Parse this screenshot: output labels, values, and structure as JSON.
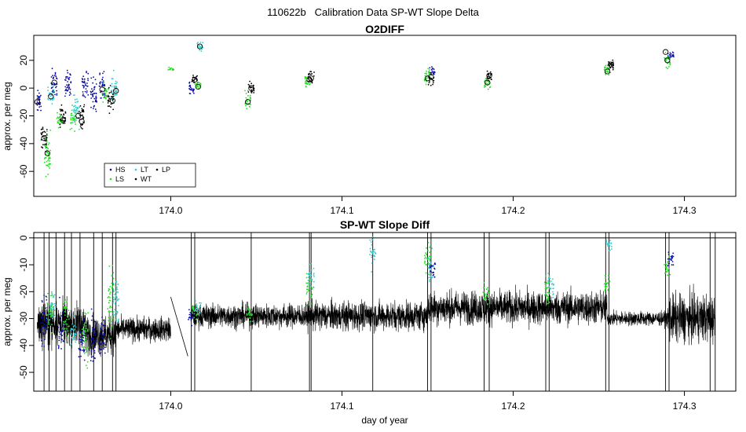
{
  "page_title": "110622b   Calibration Data SP-WT Slope Delta",
  "colors": {
    "HS": "#0a0aa8",
    "LS": "#22dd22",
    "LT": "#33cccc",
    "WT": "#000000",
    "LP": "#000000"
  },
  "chart_data": [
    {
      "type": "scatter",
      "title": "O2DIFF",
      "xlabel": "",
      "ylabel": "approx. per meg",
      "xlim": [
        173.92,
        174.33
      ],
      "ylim": [
        -78,
        38
      ],
      "x_ticks": [
        174.0,
        174.1,
        174.2,
        174.3
      ],
      "x_tick_labels": [
        "174.0",
        "174.1",
        "174.2",
        "174.3"
      ],
      "y_ticks": [
        -60,
        -40,
        -20,
        0,
        20
      ],
      "y_tick_labels": [
        "-60",
        "-40",
        "-20",
        "0",
        "20"
      ],
      "legend": {
        "placement": "bottom-left",
        "entries": [
          {
            "key": "HS",
            "label": "HS"
          },
          {
            "key": "LS",
            "label": "LS"
          },
          {
            "key": "LT",
            "label": "LT"
          },
          {
            "key": "WT",
            "label": "WT"
          },
          {
            "key": "LP",
            "label": "LP"
          }
        ]
      },
      "clusters": [
        {
          "x": 173.923,
          "y": -10,
          "spread": 5,
          "series": "HS"
        },
        {
          "x": 173.926,
          "y": -36,
          "spread": 6,
          "series": "WT"
        },
        {
          "x": 173.928,
          "y": -47,
          "spread": 10,
          "series": "LS"
        },
        {
          "x": 173.93,
          "y": -5,
          "spread": 5,
          "series": "LT"
        },
        {
          "x": 173.932,
          "y": 5,
          "spread": 6,
          "series": "HS"
        },
        {
          "x": 173.935,
          "y": -23,
          "spread": 5,
          "series": "LS"
        },
        {
          "x": 173.937,
          "y": -20,
          "spread": 5,
          "series": "WT"
        },
        {
          "x": 173.94,
          "y": 3,
          "spread": 8,
          "series": "HS"
        },
        {
          "x": 173.943,
          "y": -22,
          "spread": 5,
          "series": "LS"
        },
        {
          "x": 173.945,
          "y": -15,
          "spread": 8,
          "series": "LT"
        },
        {
          "x": 173.948,
          "y": -20,
          "spread": 6,
          "series": "WT"
        },
        {
          "x": 173.95,
          "y": 2,
          "spread": 7,
          "series": "HS"
        },
        {
          "x": 173.955,
          "y": -5,
          "spread": 8,
          "series": "HS"
        },
        {
          "x": 173.96,
          "y": 0,
          "spread": 7,
          "series": "HS"
        },
        {
          "x": 173.962,
          "y": -5,
          "spread": 5,
          "series": "LS"
        },
        {
          "x": 173.965,
          "y": -9,
          "spread": 6,
          "series": "WT"
        },
        {
          "x": 173.967,
          "y": 0,
          "spread": 7,
          "series": "LT"
        },
        {
          "x": 174.0,
          "y": 14,
          "spread": 1,
          "series": "LS"
        },
        {
          "x": 174.012,
          "y": 0,
          "spread": 3,
          "series": "HS"
        },
        {
          "x": 174.014,
          "y": 6,
          "spread": 2,
          "series": "WT"
        },
        {
          "x": 174.016,
          "y": 2,
          "spread": 2,
          "series": "LS"
        },
        {
          "x": 174.017,
          "y": 30,
          "spread": 2,
          "series": "LT"
        },
        {
          "x": 174.045,
          "y": -9,
          "spread": 4,
          "series": "LS"
        },
        {
          "x": 174.047,
          "y": 0,
          "spread": 3,
          "series": "WT"
        },
        {
          "x": 174.08,
          "y": 5,
          "spread": 3,
          "series": "LS"
        },
        {
          "x": 174.082,
          "y": 8,
          "spread": 3,
          "series": "WT"
        },
        {
          "x": 174.15,
          "y": 8,
          "spread": 4,
          "series": "LS"
        },
        {
          "x": 174.152,
          "y": 7,
          "spread": 3,
          "series": "WT"
        },
        {
          "x": 174.153,
          "y": 12,
          "spread": 2,
          "series": "HS"
        },
        {
          "x": 174.185,
          "y": 5,
          "spread": 4,
          "series": "LS"
        },
        {
          "x": 174.186,
          "y": 9,
          "spread": 3,
          "series": "WT"
        },
        {
          "x": 174.255,
          "y": 13,
          "spread": 4,
          "series": "LS"
        },
        {
          "x": 174.257,
          "y": 17,
          "spread": 3,
          "series": "WT"
        },
        {
          "x": 174.29,
          "y": 20,
          "spread": 4,
          "series": "LS"
        },
        {
          "x": 174.292,
          "y": 24,
          "spread": 2,
          "series": "HS"
        }
      ],
      "circle_markers": [
        {
          "x": 173.922,
          "y": -10
        },
        {
          "x": 173.926,
          "y": -36
        },
        {
          "x": 173.928,
          "y": -47
        },
        {
          "x": 173.93,
          "y": -6
        },
        {
          "x": 173.932,
          "y": 4
        },
        {
          "x": 173.937,
          "y": -23
        },
        {
          "x": 173.946,
          "y": -20
        },
        {
          "x": 173.948,
          "y": -24
        },
        {
          "x": 173.96,
          "y": -1
        },
        {
          "x": 173.966,
          "y": -9
        },
        {
          "x": 173.968,
          "y": -2
        },
        {
          "x": 174.014,
          "y": 6
        },
        {
          "x": 174.016,
          "y": 1
        },
        {
          "x": 174.017,
          "y": 30
        },
        {
          "x": 174.045,
          "y": -10
        },
        {
          "x": 174.047,
          "y": 0
        },
        {
          "x": 174.081,
          "y": 6
        },
        {
          "x": 174.082,
          "y": 7
        },
        {
          "x": 174.15,
          "y": 7
        },
        {
          "x": 174.152,
          "y": 8
        },
        {
          "x": 174.185,
          "y": 4
        },
        {
          "x": 174.186,
          "y": 9
        },
        {
          "x": 174.255,
          "y": 12
        },
        {
          "x": 174.257,
          "y": 17
        },
        {
          "x": 174.289,
          "y": 26
        },
        {
          "x": 174.29,
          "y": 20
        }
      ]
    },
    {
      "type": "line",
      "title": "SP-WT Slope Diff",
      "xlabel": "day of year",
      "ylabel": "approx. per meg",
      "xlim": [
        173.92,
        174.33
      ],
      "ylim": [
        -57,
        2
      ],
      "x_ticks": [
        174.0,
        174.1,
        174.2,
        174.3
      ],
      "x_tick_labels": [
        "174.0",
        "174.1",
        "174.2",
        "174.3"
      ],
      "y_ticks": [
        -50,
        -40,
        -30,
        -20,
        -10,
        0
      ],
      "y_tick_labels": [
        "-50",
        "-40",
        "-30",
        "-20",
        "-10",
        "0"
      ],
      "reference_line_y": 0,
      "segments": [
        {
          "x_start": 173.922,
          "x_end": 173.95,
          "mean": -32,
          "amp": 9
        },
        {
          "x_start": 173.95,
          "x_end": 173.968,
          "mean": -36,
          "amp": 8
        },
        {
          "x_start": 173.968,
          "x_end": 174.0,
          "mean": -34,
          "amp": 5
        },
        {
          "x_start": 174.012,
          "x_end": 174.08,
          "mean": -29,
          "amp": 5
        },
        {
          "x_start": 174.08,
          "x_end": 174.15,
          "mean": -29,
          "amp": 6
        },
        {
          "x_start": 174.15,
          "x_end": 174.22,
          "mean": -26,
          "amp": 7
        },
        {
          "x_start": 174.22,
          "x_end": 174.255,
          "mean": -26,
          "amp": 7
        },
        {
          "x_start": 174.255,
          "x_end": 174.29,
          "mean": -30,
          "amp": 3
        },
        {
          "x_start": 174.29,
          "x_end": 174.318,
          "mean": -30,
          "amp": 10
        }
      ],
      "gap_connector": {
        "from": [
          174.0,
          -22
        ],
        "to": [
          174.01,
          -44
        ]
      },
      "spikes": [
        173.926,
        173.929,
        173.933,
        173.938,
        173.942,
        173.947,
        173.955,
        173.96,
        173.966,
        173.968,
        174.012,
        174.014,
        174.047,
        174.081,
        174.082,
        174.118,
        174.15,
        174.152,
        174.183,
        174.186,
        174.219,
        174.221,
        174.254,
        174.256,
        174.289,
        174.291,
        174.315,
        174.318
      ],
      "colored_clusters": [
        {
          "x": 173.926,
          "y": -30,
          "spread": 9,
          "series": "HS"
        },
        {
          "x": 173.929,
          "y": -28,
          "spread": 8,
          "series": "LS"
        },
        {
          "x": 173.931,
          "y": -25,
          "spread": 5,
          "series": "LT"
        },
        {
          "x": 173.936,
          "y": -33,
          "spread": 8,
          "series": "HS"
        },
        {
          "x": 173.939,
          "y": -30,
          "spread": 8,
          "series": "LS"
        },
        {
          "x": 173.943,
          "y": -35,
          "spread": 6,
          "series": "LT"
        },
        {
          "x": 173.948,
          "y": -38,
          "spread": 8,
          "series": "HS"
        },
        {
          "x": 173.95,
          "y": -36,
          "spread": 10,
          "series": "LS"
        },
        {
          "x": 173.955,
          "y": -38,
          "spread": 9,
          "series": "HS"
        },
        {
          "x": 173.96,
          "y": -37,
          "spread": 8,
          "series": "HS"
        },
        {
          "x": 173.965,
          "y": -23,
          "spread": 12,
          "series": "LS"
        },
        {
          "x": 173.968,
          "y": -22,
          "spread": 10,
          "series": "LT"
        },
        {
          "x": 174.012,
          "y": -29,
          "spread": 3,
          "series": "HS"
        },
        {
          "x": 174.014,
          "y": -27,
          "spread": 3,
          "series": "LS"
        },
        {
          "x": 174.016,
          "y": -26,
          "spread": 3,
          "series": "LT"
        },
        {
          "x": 174.046,
          "y": -28,
          "spread": 3,
          "series": "LS"
        },
        {
          "x": 174.081,
          "y": -18,
          "spread": 6,
          "series": "LS"
        },
        {
          "x": 174.082,
          "y": -15,
          "spread": 4,
          "series": "LT"
        },
        {
          "x": 174.118,
          "y": -5,
          "spread": 6,
          "series": "LT"
        },
        {
          "x": 174.15,
          "y": -8,
          "spread": 6,
          "series": "LS"
        },
        {
          "x": 174.152,
          "y": -10,
          "spread": 5,
          "series": "LT"
        },
        {
          "x": 174.153,
          "y": -12,
          "spread": 3,
          "series": "HS"
        },
        {
          "x": 174.184,
          "y": -20,
          "spread": 4,
          "series": "LS"
        },
        {
          "x": 174.22,
          "y": -19,
          "spread": 6,
          "series": "LS"
        },
        {
          "x": 174.222,
          "y": -18,
          "spread": 5,
          "series": "LT"
        },
        {
          "x": 174.255,
          "y": -17,
          "spread": 3,
          "series": "LS"
        },
        {
          "x": 174.256,
          "y": -3,
          "spread": 3,
          "series": "LT"
        },
        {
          "x": 174.29,
          "y": -12,
          "spread": 4,
          "series": "LS"
        },
        {
          "x": 174.292,
          "y": -8,
          "spread": 3,
          "series": "HS"
        }
      ]
    }
  ]
}
